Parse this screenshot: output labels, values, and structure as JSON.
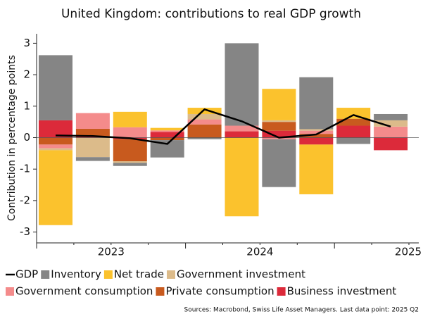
{
  "chart_data": {
    "type": "bar",
    "title": "United Kingdom: contributions to real GDP growth",
    "y_label": "Contribution in percentage points",
    "categories": [
      null,
      null,
      null,
      null,
      null,
      null,
      null,
      null,
      null,
      null
    ],
    "year_labels": [
      "2023",
      "2024",
      "2025"
    ],
    "ylim": [
      -3.3,
      3.3
    ],
    "yticks": [
      -3,
      -2,
      -1,
      0,
      1,
      2,
      3
    ],
    "stacked": true,
    "series": [
      {
        "name": "GDP",
        "type": "line",
        "color": "#000000",
        "values": [
          0.07,
          0.05,
          -0.02,
          -0.2,
          0.9,
          0.52,
          0.0,
          0.1,
          0.72,
          0.35
        ]
      },
      {
        "name": "Inventory",
        "color": "#858585",
        "values": [
          2.07,
          -0.12,
          -0.1,
          -0.55,
          -0.05,
          2.62,
          -1.52,
          1.65,
          -0.2,
          0.2
        ]
      },
      {
        "name": "Net trade",
        "color": "#fbc22d",
        "values": [
          -2.38,
          0,
          0.49,
          0.08,
          0.2,
          -2.5,
          1.0,
          -1.58,
          0.35,
          0
        ]
      },
      {
        "name": "Government investment",
        "color": "#dcbb8a",
        "values": [
          -0.06,
          -0.62,
          -0.05,
          0,
          0.17,
          0,
          0.05,
          0.05,
          0,
          0.2
        ]
      },
      {
        "name": "Government consumption",
        "color": "#f48b8b",
        "values": [
          -0.12,
          0.5,
          0.33,
          0.05,
          0.16,
          0.18,
          -0.05,
          0.1,
          0,
          0.35
        ]
      },
      {
        "name": "Private consumption",
        "color": "#c85a1e",
        "values": [
          -0.22,
          0.23,
          -0.7,
          -0.08,
          0.42,
          0,
          0.28,
          0.12,
          0.22,
          0
        ]
      },
      {
        "name": "Business investment",
        "color": "#dc2a3a",
        "values": [
          0.55,
          0.05,
          -0.05,
          0.18,
          0,
          0.2,
          0.22,
          -0.22,
          0.38,
          -0.4
        ]
      }
    ],
    "source": "Sources: Macrobond, Swiss Life Asset Managers. Last data point: 2025 Q2"
  }
}
